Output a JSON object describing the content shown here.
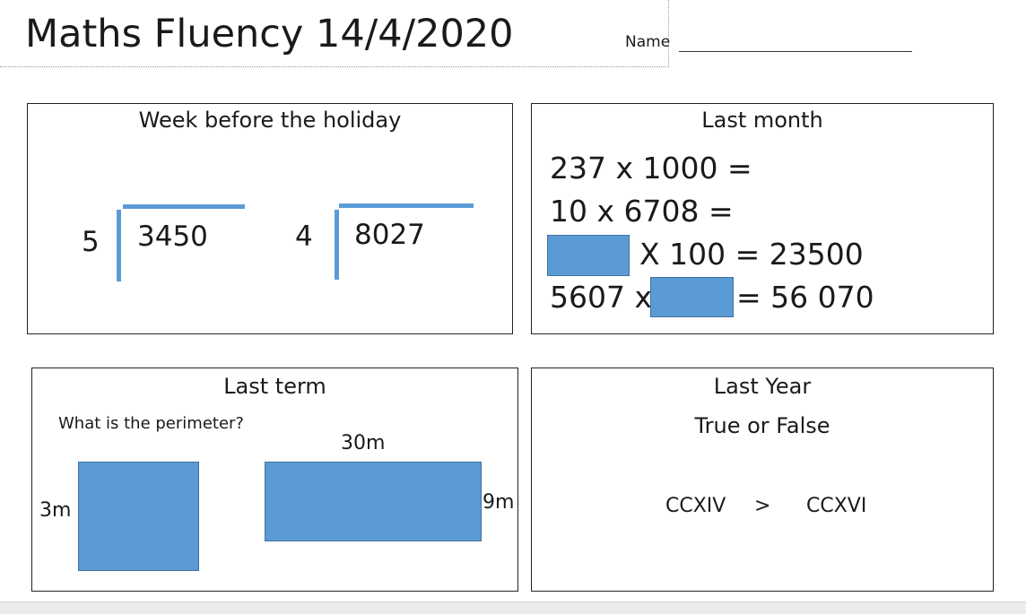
{
  "header": {
    "title": "Maths Fluency 14/4/2020",
    "name_label": "Name"
  },
  "week_before": {
    "heading": "Week before the holiday",
    "divisions": [
      {
        "divisor": "5",
        "dividend": "3450"
      },
      {
        "divisor": "4",
        "dividend": "8027"
      }
    ]
  },
  "last_month": {
    "heading": "Last month",
    "lines": {
      "l1": "237 x 1000 =",
      "l2": "10 x 6708 =",
      "l3_rest": "X 100 = 23500",
      "l4_start": "5607 x",
      "l4_end": "= 56 070"
    }
  },
  "last_term": {
    "heading": "Last term",
    "question": "What is the perimeter?",
    "square_label": "3m",
    "rect_top_label": "30m",
    "rect_side_label": "9m"
  },
  "last_year": {
    "heading": "Last Year",
    "subheading": "True or False",
    "left": "CCXIV",
    "symbol": ">",
    "right": "CCXVI"
  },
  "colors": {
    "fill": "#5b9bd5",
    "fill_border": "#41719c"
  }
}
